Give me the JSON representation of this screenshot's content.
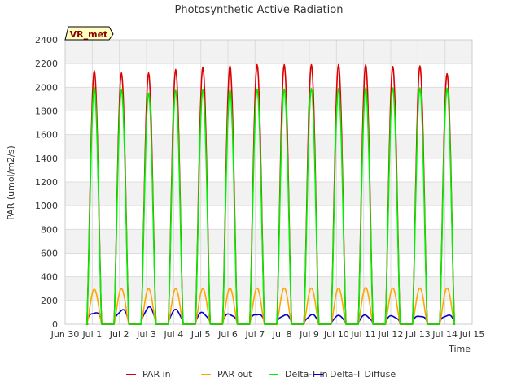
{
  "chart_data": {
    "type": "line",
    "title": "Photosynthetic Active Radiation",
    "xlabel": "Time",
    "ylabel": "PAR (umol/m2/s)",
    "annotation": "VR_met",
    "ylim": [
      0,
      2400
    ],
    "xlim": [
      0,
      15
    ],
    "y_ticks": [
      0,
      200,
      400,
      600,
      800,
      1000,
      1200,
      1400,
      1600,
      1800,
      2000,
      2200,
      2400
    ],
    "x_ticks": [
      {
        "pos": 0,
        "label": "Jun 30"
      },
      {
        "pos": 1,
        "label": "Jul 1"
      },
      {
        "pos": 2,
        "label": "Jul 2"
      },
      {
        "pos": 3,
        "label": "Jul 3"
      },
      {
        "pos": 4,
        "label": "Jul 4"
      },
      {
        "pos": 5,
        "label": "Jul 5"
      },
      {
        "pos": 6,
        "label": "Jul 6"
      },
      {
        "pos": 7,
        "label": "Jul 7"
      },
      {
        "pos": 8,
        "label": "Jul 8"
      },
      {
        "pos": 9,
        "label": "Jul 9"
      },
      {
        "pos": 10,
        "label": "Jul 10"
      },
      {
        "pos": 11,
        "label": "Jul 11"
      },
      {
        "pos": 12,
        "label": "Jul 12"
      },
      {
        "pos": 13,
        "label": "Jul 13"
      },
      {
        "pos": 14,
        "label": "Jul 14"
      },
      {
        "pos": 15,
        "label": "Jul 15"
      }
    ],
    "day_start": 0.8,
    "day_length": 0.55,
    "series": [
      {
        "name": "PAR in",
        "color": "#dd0000",
        "daily_peaks": [
          2140,
          2120,
          2120,
          2150,
          2170,
          2180,
          2190,
          2190,
          2190,
          2190,
          2190,
          2175,
          2180,
          2115
        ]
      },
      {
        "name": "PAR out",
        "color": "#ffa500",
        "daily_peaks": [
          295,
          300,
          300,
          300,
          300,
          305,
          305,
          305,
          305,
          305,
          310,
          305,
          305,
          305
        ]
      },
      {
        "name": "Delta-T in",
        "color": "#00ee00",
        "daily_peaks": [
          2000,
          1980,
          1950,
          1975,
          1980,
          1980,
          1985,
          1985,
          1990,
          1990,
          1995,
          1995,
          1995,
          1990
        ]
      },
      {
        "name": "Delta-T Diffuse",
        "color": "#0000cc",
        "daily_peaks": [
          120,
          135,
          150,
          125,
          105,
          100,
          105,
          90,
          85,
          75,
          80,
          80,
          85,
          90
        ]
      }
    ]
  }
}
